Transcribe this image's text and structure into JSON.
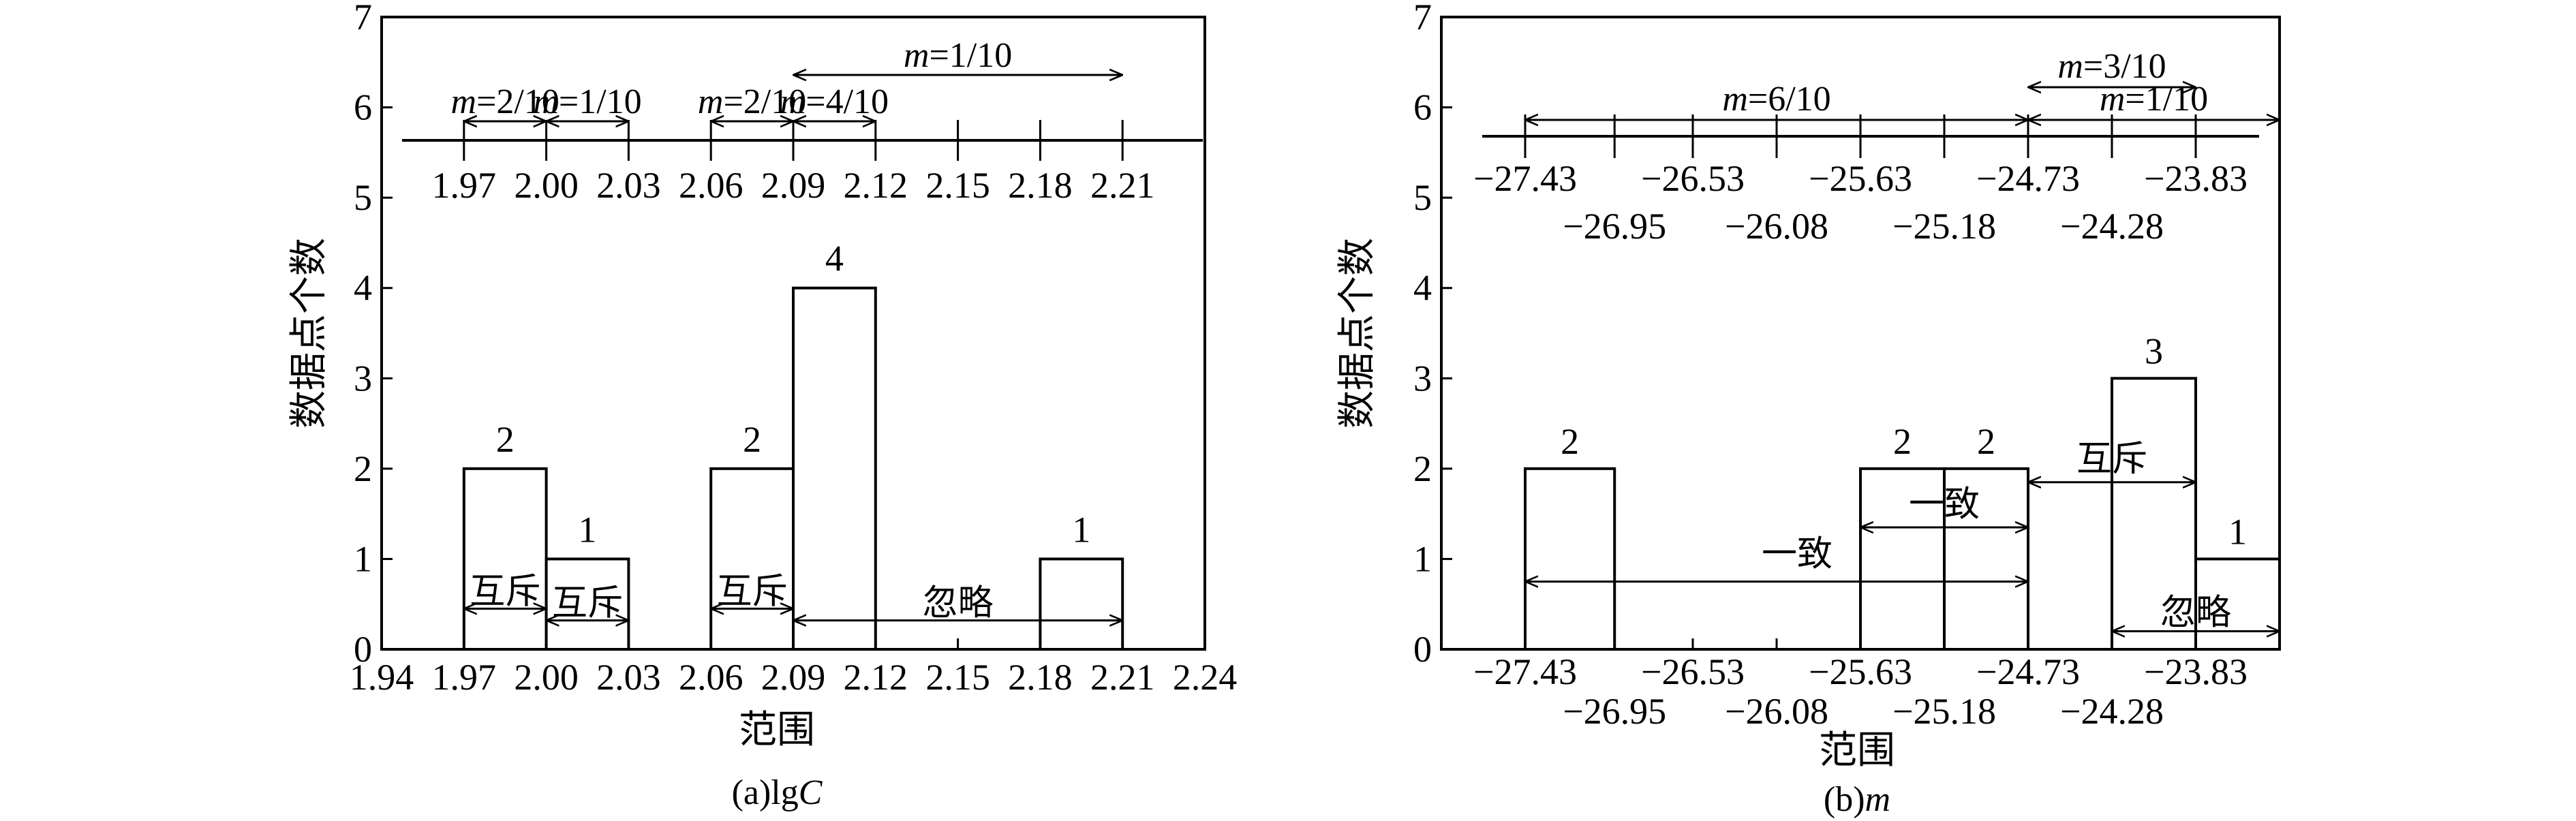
{
  "figure": {
    "panels": [
      {
        "caption": "(a)lgC",
        "caption_prefix": "(a)lg",
        "caption_var": "C",
        "ylabel": "数据点个数",
        "xlabel": "范围"
      },
      {
        "caption": "(b)m",
        "caption_prefix": "(b)",
        "caption_var": "m",
        "ylabel": "数据点个数",
        "xlabel": "范围"
      }
    ]
  },
  "chart_data": [
    {
      "type": "bar",
      "title": "(a)lgC",
      "xlabel": "范围",
      "ylabel": "数据点个数",
      "xlim": [
        1.94,
        2.24
      ],
      "ylim": [
        0,
        7
      ],
      "grid": false,
      "x_ticks": [
        "1.94",
        "1.97",
        "2.00",
        "2.03",
        "2.06",
        "2.09",
        "2.12",
        "2.15",
        "2.18",
        "2.21",
        "2.24"
      ],
      "y_ticks": [
        "0",
        "1",
        "2",
        "3",
        "4",
        "5",
        "6",
        "7"
      ],
      "bins": [
        {
          "from": 1.97,
          "to": 2.0,
          "count": 2,
          "label": "2"
        },
        {
          "from": 2.0,
          "to": 2.03,
          "count": 1,
          "label": "1"
        },
        {
          "from": 2.06,
          "to": 2.09,
          "count": 2,
          "label": "2"
        },
        {
          "from": 2.09,
          "to": 2.12,
          "count": 4,
          "label": "4"
        },
        {
          "from": 2.18,
          "to": 2.21,
          "count": 1,
          "label": "1"
        }
      ],
      "relations": [
        {
          "from": 1.97,
          "to": 2.0,
          "text": "互斥"
        },
        {
          "from": 2.0,
          "to": 2.03,
          "text": "互斥"
        },
        {
          "from": 2.06,
          "to": 2.09,
          "text": "互斥"
        },
        {
          "from": 2.09,
          "to": 2.21,
          "text": "忽略"
        }
      ],
      "scale_line": {
        "ticks": [
          "1.97",
          "2.00",
          "2.03",
          "2.06",
          "2.09",
          "2.12",
          "2.15",
          "2.18",
          "2.21"
        ],
        "spans": [
          {
            "from": 1.97,
            "to": 2.0,
            "var": "m",
            "value": "2/10"
          },
          {
            "from": 2.0,
            "to": 2.03,
            "var": "m",
            "value": "1/10"
          },
          {
            "from": 2.06,
            "to": 2.09,
            "var": "m",
            "value": "2/10"
          },
          {
            "from": 2.09,
            "to": 2.12,
            "var": "m",
            "value": "4/10"
          },
          {
            "from": 2.09,
            "to": 2.21,
            "var": "m",
            "value": "1/10"
          }
        ]
      }
    },
    {
      "type": "bar",
      "title": "(b)m",
      "xlabel": "范围",
      "ylabel": "数据点个数",
      "xlim": [
        -27.88,
        -23.38
      ],
      "ylim": [
        0,
        7
      ],
      "grid": false,
      "y_ticks": [
        "0",
        "1",
        "2",
        "3",
        "4",
        "5",
        "6",
        "7"
      ],
      "x_ticks": [
        {
          "value": -27.43,
          "label": "−27.43",
          "row": 1
        },
        {
          "value": -26.95,
          "label": "−26.95",
          "row": 2
        },
        {
          "value": -26.53,
          "label": "−26.53",
          "row": 1
        },
        {
          "value": -26.08,
          "label": "−26.08",
          "row": 2
        },
        {
          "value": -25.63,
          "label": "−25.63",
          "row": 1
        },
        {
          "value": -25.18,
          "label": "−25.18",
          "row": 2
        },
        {
          "value": -24.73,
          "label": "−24.73",
          "row": 1
        },
        {
          "value": -24.28,
          "label": "−24.28",
          "row": 2
        },
        {
          "value": -23.83,
          "label": "−23.83",
          "row": 1
        }
      ],
      "bins": [
        {
          "from": -27.43,
          "to": -26.95,
          "count": 2,
          "label": "2"
        },
        {
          "from": -25.63,
          "to": -25.18,
          "count": 2,
          "label": "2"
        },
        {
          "from": -25.18,
          "to": -24.73,
          "count": 2,
          "label": "2"
        },
        {
          "from": -24.28,
          "to": -23.83,
          "count": 3,
          "label": "3"
        },
        {
          "from": -23.83,
          "to": -23.38,
          "count": 1,
          "label": "1"
        }
      ],
      "relations": [
        {
          "from": -27.43,
          "to": -24.73,
          "y": 0.75,
          "text": "一致",
          "text_at": -25.97,
          "text_y": 1.0
        },
        {
          "from": -25.63,
          "to": -24.73,
          "y": 1.35,
          "text": "一致",
          "text_at": -25.18,
          "text_y": 1.55
        },
        {
          "from": -24.73,
          "to": -23.83,
          "y": 1.85,
          "text": "互斥",
          "text_at": -24.28,
          "text_y": 2.05
        },
        {
          "from": -24.28,
          "to": -23.38,
          "y": 0.2,
          "text": "忽略",
          "text_at": -23.83,
          "text_y": 0.35
        }
      ],
      "scale_line": {
        "ticks": [
          {
            "value": -27.43,
            "label": "−27.43",
            "row": 1
          },
          {
            "value": -26.95,
            "label": "−26.95",
            "row": 2
          },
          {
            "value": -26.53,
            "label": "−26.53",
            "row": 1
          },
          {
            "value": -26.08,
            "label": "−26.08",
            "row": 2
          },
          {
            "value": -25.63,
            "label": "−25.63",
            "row": 1
          },
          {
            "value": -25.18,
            "label": "−25.18",
            "row": 2
          },
          {
            "value": -24.73,
            "label": "−24.73",
            "row": 1
          },
          {
            "value": -24.28,
            "label": "−24.28",
            "row": 2
          },
          {
            "value": -23.83,
            "label": "−23.83",
            "row": 1
          }
        ],
        "spans": [
          {
            "from": -27.43,
            "to": -24.73,
            "var": "m",
            "value": "6/10",
            "level": 0
          },
          {
            "from": -24.73,
            "to": -23.83,
            "var": "m",
            "value": "3/10",
            "level": 1
          },
          {
            "from": -24.73,
            "to": -23.38,
            "var": "m",
            "value": "1/10",
            "level": 0
          }
        ]
      }
    }
  ]
}
